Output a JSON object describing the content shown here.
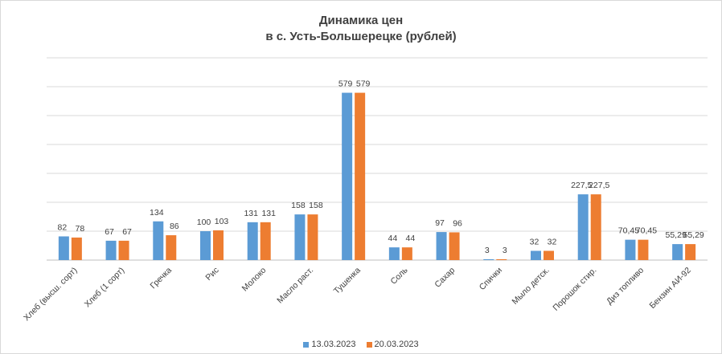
{
  "chart_data": {
    "type": "bar",
    "title_lines": [
      "Динамика цен",
      "в с. Усть-Большерецке (рублей)"
    ],
    "categories": [
      "Хлеб (высш. сорт)",
      "Хлеб (1 сорт)",
      "Гречка",
      "Рис",
      "Молоко",
      "Масло раст.",
      "Тушенка",
      "Соль",
      "Сахар",
      "Спички",
      "Мыло детск.",
      "Порошок стир.",
      "Диз топливо",
      "Бензин АИ-92"
    ],
    "series": [
      {
        "name": "13.03.2023",
        "color": "#5b9bd5",
        "values": [
          82,
          67,
          134,
          100,
          131,
          158,
          579,
          44,
          97,
          3,
          32,
          227.5,
          70.45,
          55.29
        ],
        "labels": [
          "82",
          "67",
          "134",
          "100",
          "131",
          "158",
          "579",
          "44",
          "97",
          "3",
          "32",
          "227,5",
          "70,45",
          "55,29"
        ]
      },
      {
        "name": "20.03.2023",
        "color": "#ed7d31",
        "values": [
          78,
          67,
          86,
          103,
          131,
          158,
          579,
          44,
          96,
          3,
          32,
          227.5,
          70.45,
          55.29
        ],
        "labels": [
          "78",
          "67",
          "86",
          "103",
          "131",
          "158",
          "579",
          "44",
          "96",
          "3",
          "32",
          "227,5",
          "70,45",
          "55,29"
        ]
      }
    ],
    "ylim": [
      0,
      700
    ],
    "gridlines": true,
    "axis_labels_shown": false,
    "legend_position": "bottom"
  }
}
